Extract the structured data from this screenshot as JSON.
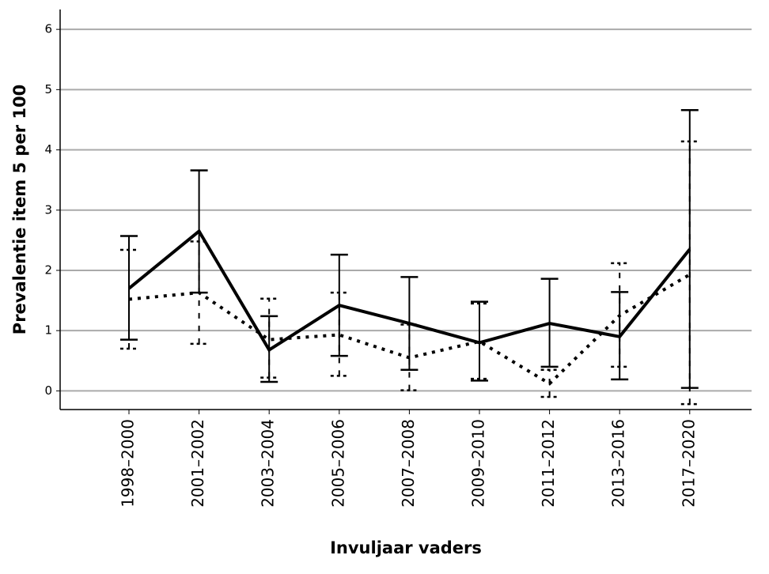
{
  "chart_data": {
    "type": "line",
    "y_label": "Prevalentie item 5 per 100",
    "x_label": "Invuljaar vaders",
    "categories": [
      "1998–2000",
      "2001–2002",
      "2003–2004",
      "2005–2006",
      "2007–2008",
      "2009–2010",
      "2011–2012",
      "2013–2016",
      "2017–2020"
    ],
    "series": [
      {
        "color": "#000000",
        "style": "solid",
        "values": [
          1.7,
          2.65,
          0.68,
          1.42,
          1.12,
          0.8,
          1.12,
          0.9,
          2.35
        ],
        "lower": [
          0.85,
          1.63,
          0.15,
          0.58,
          0.35,
          0.17,
          0.4,
          0.19,
          0.05
        ],
        "upper": [
          2.57,
          3.66,
          1.24,
          2.26,
          1.89,
          1.48,
          1.86,
          1.64,
          4.66
        ]
      },
      {
        "color": "#000000",
        "style": "dotted",
        "values": [
          1.52,
          1.63,
          0.85,
          0.93,
          0.55,
          0.82,
          0.12,
          1.25,
          1.93
        ],
        "lower": [
          0.7,
          0.78,
          0.22,
          0.25,
          0.01,
          0.2,
          -0.1,
          0.4,
          -0.22
        ],
        "upper": [
          2.34,
          2.48,
          1.53,
          1.63,
          1.1,
          1.45,
          0.35,
          2.12,
          4.14
        ]
      }
    ],
    "ylim": [
      -0.31,
      6.33
    ],
    "yticks": [
      0,
      1,
      2,
      3,
      4,
      5,
      6
    ],
    "grid": true
  }
}
